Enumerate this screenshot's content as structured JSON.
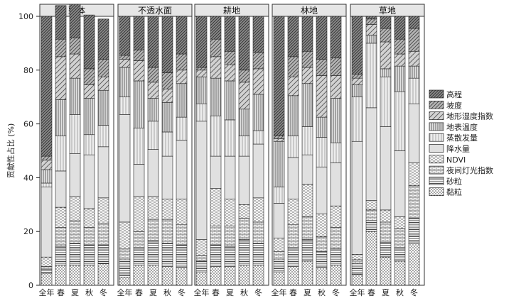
{
  "chart_data": {
    "type": "bar",
    "stacked": true,
    "ylabel": "贡献性占比 (%)",
    "ylim": [
      0,
      100
    ],
    "yticks": [
      0,
      20,
      40,
      60,
      80,
      100
    ],
    "categories": [
      "全年",
      "春",
      "夏",
      "秋",
      "冬"
    ],
    "legend_placement": "right",
    "legend": [
      {
        "name": "高程",
        "pattern": "dense-diag"
      },
      {
        "name": "坡度",
        "pattern": "diag"
      },
      {
        "name": "地形湿度指数",
        "pattern": "wide-diag"
      },
      {
        "name": "地表温度",
        "pattern": "vlines"
      },
      {
        "name": "蒸散发量",
        "pattern": "light-vlines"
      },
      {
        "name": "降水量",
        "pattern": "plain"
      },
      {
        "name": "NDVI",
        "pattern": "dash"
      },
      {
        "name": "夜间灯光指数",
        "pattern": "bricks"
      },
      {
        "name": "砂粒",
        "pattern": "hlines"
      },
      {
        "name": "黏粒",
        "pattern": "dots"
      }
    ],
    "panels": [
      {
        "title": "整体",
        "bars": [
          [
            4.5,
            1.5,
            1,
            3.5,
            26,
            1.5,
            5,
            3.5,
            1.5,
            52
          ],
          [
            7.5,
            7,
            7,
            7.5,
            13.5,
            13,
            13.5,
            16,
            6.5,
            12.5
          ],
          [
            7.5,
            8,
            8.5,
            9,
            16,
            14.5,
            13.5,
            9,
            6,
            12.5
          ],
          [
            7.5,
            7.5,
            6.5,
            7,
            20,
            7.5,
            13.5,
            5,
            6,
            20
          ],
          [
            8,
            7,
            8,
            9.5,
            19,
            8,
            13,
            5,
            6.5,
            15
          ]
        ]
      },
      {
        "title": "不透水面",
        "bars": [
          [
            3,
            6.5,
            4,
            10,
            40,
            6.5,
            11,
            3,
            1.5,
            14.5
          ],
          [
            7.5,
            6.5,
            6,
            13,
            12,
            13.5,
            17.5,
            7.5,
            4,
            12.5
          ],
          [
            7.5,
            9,
            8,
            8.5,
            17.5,
            10.5,
            8.5,
            6,
            5.5,
            19
          ],
          [
            7,
            8.5,
            9,
            7.5,
            16,
            9,
            11,
            5,
            6,
            21
          ],
          [
            6.5,
            8.5,
            7.5,
            9.5,
            22,
            8.5,
            12.5,
            5,
            6,
            14
          ]
        ]
      },
      {
        "title": "耕地",
        "bars": [
          [
            5,
            4,
            2,
            6,
            44,
            6.5,
            10,
            2.5,
            1,
            19
          ],
          [
            7,
            8,
            7,
            14,
            12,
            15,
            14,
            8,
            6.5,
            8.5
          ],
          [
            7,
            7.5,
            7.5,
            10,
            16,
            13.5,
            14.5,
            6,
            5,
            13
          ],
          [
            7.5,
            9.5,
            8,
            5,
            18,
            7.5,
            10,
            10,
            4.5,
            20
          ],
          [
            7.5,
            8,
            8,
            9,
            20,
            5,
            13.5,
            9.5,
            6,
            13.5
          ]
        ]
      },
      {
        "title": "林地",
        "bars": [
          [
            5,
            4.5,
            3,
            5,
            13,
            6,
            17,
            1,
            1,
            44.5
          ],
          [
            7,
            7,
            8.5,
            9.5,
            15.5,
            8,
            15,
            7,
            7.5,
            15
          ],
          [
            9,
            8,
            8.5,
            12,
            11,
            10.5,
            16,
            6,
            6,
            13
          ],
          [
            6.5,
            6,
            5.5,
            8.5,
            17.5,
            11,
            7.5,
            15.5,
            6,
            16
          ],
          [
            7.5,
            6,
            8,
            8,
            16,
            7.5,
            16.5,
            8.5,
            6.5,
            15.5
          ]
        ]
      },
      {
        "title": "草地",
        "bars": [
          [
            4,
            4,
            1.5,
            2,
            42,
            16.5,
            4.5,
            2.5,
            1.5,
            21.5
          ],
          [
            20,
            4,
            4,
            3.5,
            34.5,
            24,
            3,
            4,
            2,
            1
          ],
          [
            10.5,
            5.5,
            7.5,
            4.5,
            31,
            18.5,
            3,
            10,
            5,
            4.5
          ],
          [
            9,
            5,
            7,
            4.5,
            24.5,
            22,
            9.5,
            4.5,
            5.5,
            8.5
          ],
          [
            15.5,
            9.5,
            12,
            8.5,
            22,
            9.5,
            4.5,
            5.5,
            8.5,
            4.5
          ]
        ]
      }
    ]
  }
}
